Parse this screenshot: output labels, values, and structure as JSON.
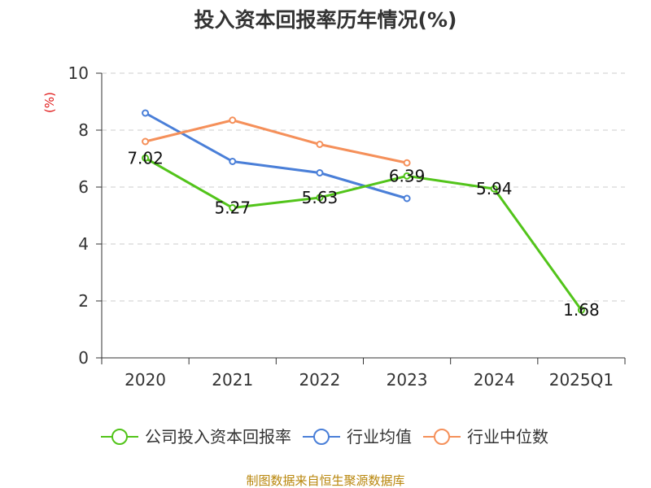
{
  "chart_data": {
    "type": "line",
    "title": "投入资本回报率历年情况(%)",
    "ylabel": "(%)",
    "xlabel": "",
    "categories": [
      "2020",
      "2021",
      "2022",
      "2023",
      "2024",
      "2025Q1"
    ],
    "ylim": [
      0,
      10
    ],
    "yticks": [
      "0",
      "2",
      "4",
      "6",
      "8",
      "10"
    ],
    "grid": true,
    "legend_position": "bottom",
    "series": [
      {
        "name": "公司投入资本回报率",
        "color": "#52c41a",
        "values": [
          7.02,
          5.27,
          5.63,
          6.39,
          5.94,
          1.68
        ],
        "labels": [
          "7.02",
          "5.27",
          "5.63",
          "6.39",
          "5.94",
          "1.68"
        ]
      },
      {
        "name": "行业均值",
        "color": "#4a7fd8",
        "values": [
          8.6,
          6.9,
          6.5,
          5.6,
          null,
          null
        ]
      },
      {
        "name": "行业中位数",
        "color": "#f5905a",
        "values": [
          7.6,
          8.35,
          7.5,
          6.85,
          null,
          null
        ]
      }
    ],
    "source": "制图数据来自恒生聚源数据库"
  }
}
